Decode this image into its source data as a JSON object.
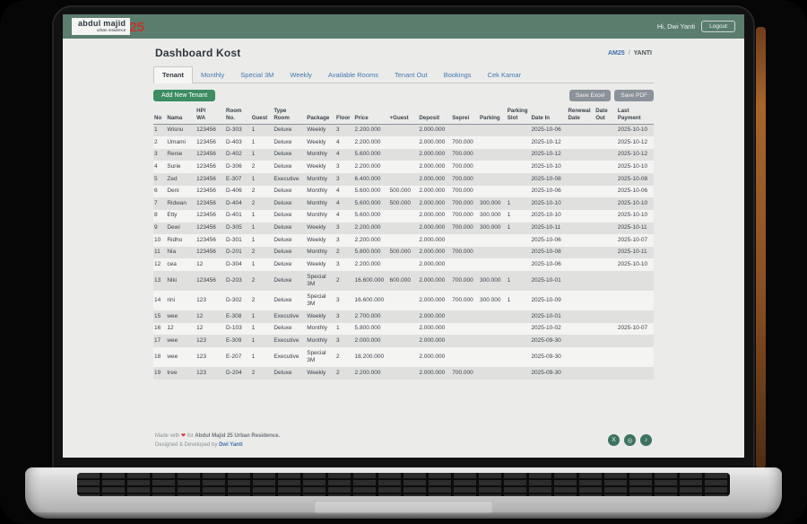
{
  "navbar": {
    "logo_line1": "abdul majid",
    "logo_line2": "urban residence",
    "logo_number": "25",
    "greeting": "Hi, Dwi Yanti",
    "logout_label": "Logout"
  },
  "page": {
    "title": "Dashboard Kost",
    "breadcrumb": {
      "home": "AM25",
      "separator": "/",
      "current": "YANTI"
    }
  },
  "tabs": [
    {
      "label": "Tenant",
      "active": true
    },
    {
      "label": "Monthly",
      "active": false
    },
    {
      "label": "Special 3M",
      "active": false
    },
    {
      "label": "Weekly",
      "active": false
    },
    {
      "label": "Available Rooms",
      "active": false
    },
    {
      "label": "Tenant Out",
      "active": false
    },
    {
      "label": "Bookings",
      "active": false
    },
    {
      "label": "Cek Kamar",
      "active": false
    }
  ],
  "toolbar": {
    "add_label": "Add New Tenant",
    "save_excel_label": "Save Excel",
    "save_pdf_label": "Save PDF"
  },
  "table": {
    "columns": [
      "No",
      "Nama",
      "HP/\nWA",
      "Room\nNo.",
      "Guest",
      "Type\nRoom",
      "Package",
      "Floor",
      "Price",
      "+Guest",
      "Deposit",
      "Seprei",
      "Parking",
      "Parking\nSlot",
      "Date In",
      "Renewal\nDate",
      "Date\nOut",
      "Last\nPayment"
    ],
    "rows": [
      [
        "1",
        "Wisnu",
        "123456",
        "D-303",
        "1",
        "Deluxe",
        "Weekly",
        "3",
        "2.200.000",
        "",
        "2.000.000",
        "",
        "",
        "",
        "2025-10-06",
        "",
        "",
        "2025-10-10"
      ],
      [
        "2",
        "Umami",
        "123456",
        "D-403",
        "1",
        "Deluxe",
        "Weekly",
        "4",
        "2.200.000",
        "",
        "2.000.000",
        "700.000",
        "",
        "",
        "2025-10-12",
        "",
        "",
        "2025-10-12"
      ],
      [
        "3",
        "Renie",
        "123456",
        "D-402",
        "1",
        "Deluxe",
        "Monthly",
        "4",
        "5.600.000",
        "",
        "2.000.000",
        "700.000",
        "",
        "",
        "2025-10-12",
        "",
        "",
        "2025-10-12"
      ],
      [
        "4",
        "Surie",
        "123456",
        "D-306",
        "2",
        "Deluxe",
        "Weekly",
        "3",
        "2.200.000",
        "",
        "2.000.000",
        "700.000",
        "",
        "",
        "2025-10-10",
        "",
        "",
        "2025-10-10"
      ],
      [
        "5",
        "Zed",
        "123456",
        "E-307",
        "1",
        "Executive",
        "Monthly",
        "3",
        "6.400.000",
        "",
        "2.000.000",
        "700.000",
        "",
        "",
        "2025-10-08",
        "",
        "",
        "2025-10-08"
      ],
      [
        "6",
        "Deni",
        "123456",
        "D-406",
        "2",
        "Deluxe",
        "Monthly",
        "4",
        "5.600.000",
        "500.000",
        "2.000.000",
        "700.000",
        "",
        "",
        "2025-10-06",
        "",
        "",
        "2025-10-06"
      ],
      [
        "7",
        "Ridwan",
        "123456",
        "D-404",
        "2",
        "Deluxe",
        "Monthly",
        "4",
        "5.600.000",
        "500.000",
        "2.000.000",
        "700.000",
        "300.000",
        "1",
        "2025-10-10",
        "",
        "",
        "2025-10-10"
      ],
      [
        "8",
        "Etty",
        "123456",
        "D-401",
        "1",
        "Deluxe",
        "Monthly",
        "4",
        "5.600.000",
        "",
        "2.000.000",
        "700.000",
        "300.000",
        "1",
        "2025-10-10",
        "",
        "",
        "2025-10-10"
      ],
      [
        "9",
        "Dewi",
        "123456",
        "D-305",
        "1",
        "Deluxe",
        "Weekly",
        "3",
        "2.200.000",
        "",
        "2.000.000",
        "700.000",
        "300.000",
        "1",
        "2025-10-11",
        "",
        "",
        "2025-10-11"
      ],
      [
        "10",
        "Ridho",
        "123456",
        "D-301",
        "1",
        "Deluxe",
        "Weekly",
        "3",
        "2.200.000",
        "",
        "2.000.000",
        "",
        "",
        "",
        "2025-10-06",
        "",
        "",
        "2025-10-07"
      ],
      [
        "11",
        "Nia",
        "123456",
        "D-201",
        "2",
        "Deluxe",
        "Monthly",
        "2",
        "5.800.000",
        "500.000",
        "2.000.000",
        "700.000",
        "",
        "",
        "2025-10-08",
        "",
        "",
        "2025-10-11"
      ],
      [
        "12",
        "cea",
        "12",
        "D-304",
        "1",
        "Deluxe",
        "Weekly",
        "3",
        "2.200.000",
        "",
        "2.000.000",
        "",
        "",
        "",
        "2025-10-06",
        "",
        "",
        "2025-10-10"
      ],
      [
        "13",
        "Niki",
        "123456",
        "D-203",
        "2",
        "Deluxe",
        "Special 3M",
        "2",
        "16.600.000",
        "600.000",
        "2.000.000",
        "700.000",
        "300.000",
        "1",
        "2025-10-01",
        "",
        "",
        ""
      ],
      [
        "14",
        "rini",
        "123",
        "D-302",
        "2",
        "Deluxe",
        "Special 3M",
        "3",
        "16.600.000",
        "",
        "2.000.000",
        "700.000",
        "300.000",
        "1",
        "2025-10-09",
        "",
        "",
        ""
      ],
      [
        "15",
        "wee",
        "12",
        "E-308",
        "1",
        "Executive",
        "Weekly",
        "3",
        "2.700.000",
        "",
        "2.000.000",
        "",
        "",
        "",
        "2025-10-01",
        "",
        "",
        ""
      ],
      [
        "16",
        "12",
        "12",
        "D-103",
        "1",
        "Deluxe",
        "Monthly",
        "1",
        "5.800.000",
        "",
        "2.000.000",
        "",
        "",
        "",
        "2025-10-02",
        "",
        "",
        "2025-10-07"
      ],
      [
        "17",
        "wee",
        "123",
        "E-309",
        "1",
        "Executive",
        "Monthly",
        "3",
        "2.000.000",
        "",
        "2.000.000",
        "",
        "",
        "",
        "2025-09-30",
        "",
        "",
        ""
      ],
      [
        "18",
        "wee",
        "123",
        "E-207",
        "1",
        "Executive",
        "Special 3M",
        "2",
        "18.200.000",
        "",
        "2.000.000",
        "",
        "",
        "",
        "2025-09-30",
        "",
        "",
        ""
      ],
      [
        "19",
        "tree",
        "123",
        "D-204",
        "2",
        "Deluxe",
        "Weekly",
        "2",
        "2.200.000",
        "",
        "2.000.000",
        "700.000",
        "",
        "",
        "2025-09-30",
        "",
        "",
        ""
      ]
    ]
  },
  "footer": {
    "line1_prefix": "Made with",
    "heart": "❤",
    "line1_mid": "for",
    "line1_bold": "Abdul Majid 25 Urban Residence.",
    "line2_prefix": "Designed & Developed by",
    "line2_link": "Dwi Yanti",
    "icons": {
      "x": "X",
      "instagram": "◎",
      "tiktok": "♪"
    }
  },
  "colors": {
    "navbar_green": "#5b7d6e",
    "button_green": "#3d8c62",
    "tab_blue": "#4478b0",
    "logo_red": "#c0362c",
    "social_green": "#3d7260",
    "row_stripe": "#e0e1df"
  }
}
